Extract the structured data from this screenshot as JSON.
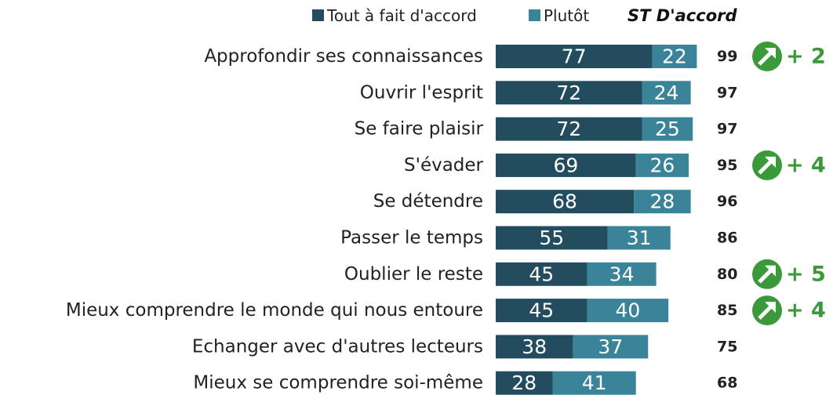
{
  "chart_data": {
    "type": "stacked_bar_horizontal",
    "categories": [
      "Approfondir ses connaissances",
      "Ouvrir l'esprit",
      "Se faire plaisir",
      "S'évader",
      "Se détendre",
      "Passer le temps",
      "Oublier le reste",
      "Mieux comprendre le monde qui nous entoure",
      "Echanger avec d'autres lecteurs",
      "Mieux se comprendre soi-même"
    ],
    "series": [
      {
        "name": "Tout à fait d'accord",
        "color": "#234d5e",
        "values": [
          77,
          72,
          72,
          69,
          68,
          55,
          45,
          45,
          38,
          28
        ]
      },
      {
        "name": "Plutôt",
        "color": "#3a8399",
        "values": [
          22,
          24,
          25,
          26,
          28,
          31,
          34,
          40,
          37,
          41
        ]
      }
    ],
    "totals_title": "ST D'accord",
    "totals": [
      99,
      97,
      97,
      95,
      96,
      86,
      80,
      85,
      75,
      68
    ],
    "changes": [
      "+ 2",
      null,
      null,
      "+ 4",
      null,
      null,
      "+ 5",
      "+ 4",
      null,
      null
    ],
    "change_color": "#3a9a3a"
  }
}
